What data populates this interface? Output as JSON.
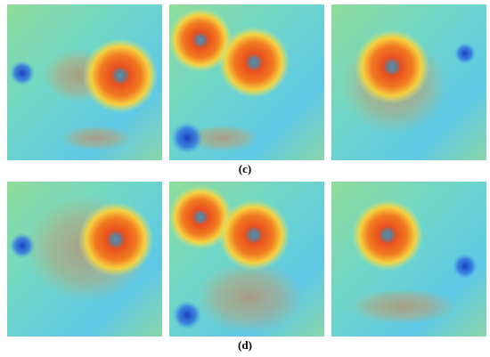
{
  "panels": [
    {
      "label": "(c)"
    },
    {
      "label": "(d)"
    }
  ]
}
